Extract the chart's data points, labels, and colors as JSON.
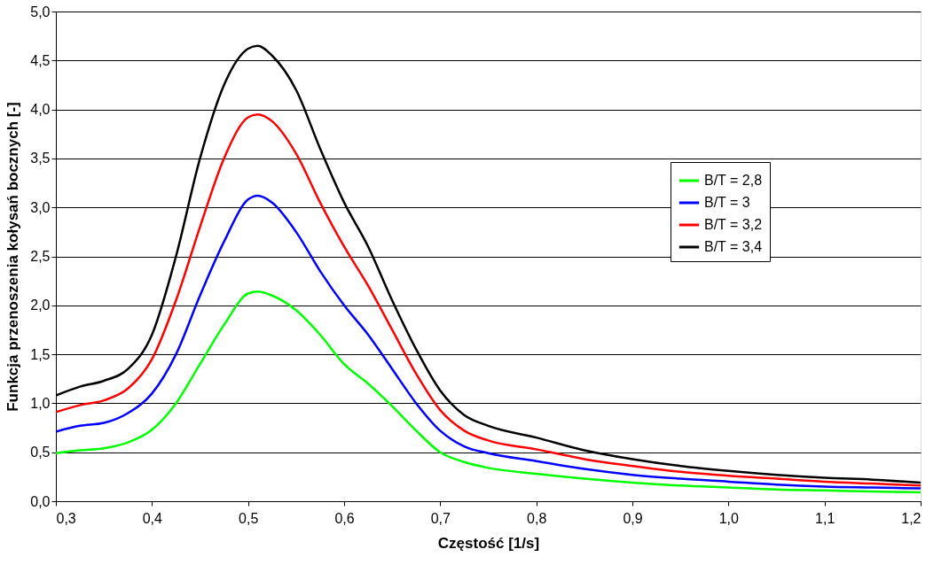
{
  "chart_data": {
    "type": "line",
    "xlabel": "Częstość [1/s]",
    "ylabel": "Funkcja przenoszenia kołysań bocznych [-]",
    "x": [
      0.3,
      0.325,
      0.35,
      0.375,
      0.4,
      0.425,
      0.45,
      0.475,
      0.5,
      0.51,
      0.525,
      0.55,
      0.575,
      0.6,
      0.625,
      0.65,
      0.675,
      0.7,
      0.725,
      0.75,
      0.8,
      0.85,
      0.9,
      0.95,
      1.0,
      1.05,
      1.1,
      1.15,
      1.2
    ],
    "series": [
      {
        "name": "B/T = 2,8",
        "color": "#00ff00",
        "values": [
          0.49,
          0.52,
          0.54,
          0.6,
          0.73,
          1.0,
          1.4,
          1.8,
          2.12,
          2.14,
          2.1,
          1.95,
          1.7,
          1.4,
          1.2,
          0.97,
          0.72,
          0.5,
          0.4,
          0.34,
          0.28,
          0.23,
          0.19,
          0.16,
          0.14,
          0.12,
          0.11,
          0.1,
          0.09
        ]
      },
      {
        "name": "B/T = 3",
        "color": "#0000ff",
        "values": [
          0.71,
          0.77,
          0.8,
          0.9,
          1.1,
          1.5,
          2.1,
          2.65,
          3.08,
          3.12,
          3.05,
          2.75,
          2.35,
          2.0,
          1.7,
          1.35,
          1.0,
          0.72,
          0.56,
          0.49,
          0.41,
          0.33,
          0.27,
          0.23,
          0.2,
          0.17,
          0.15,
          0.14,
          0.13
        ]
      },
      {
        "name": "B/T = 3,2",
        "color": "#ff0000",
        "values": [
          0.91,
          0.98,
          1.03,
          1.15,
          1.45,
          2.05,
          2.8,
          3.5,
          3.92,
          3.95,
          3.88,
          3.55,
          3.05,
          2.6,
          2.2,
          1.75,
          1.3,
          0.93,
          0.72,
          0.62,
          0.53,
          0.43,
          0.36,
          0.3,
          0.26,
          0.23,
          0.2,
          0.18,
          0.16
        ]
      },
      {
        "name": "B/T = 3,4",
        "color": "#000000",
        "values": [
          1.08,
          1.17,
          1.23,
          1.35,
          1.7,
          2.5,
          3.5,
          4.25,
          4.62,
          4.65,
          4.55,
          4.2,
          3.6,
          3.05,
          2.6,
          2.05,
          1.55,
          1.13,
          0.88,
          0.77,
          0.65,
          0.52,
          0.43,
          0.36,
          0.31,
          0.27,
          0.24,
          0.22,
          0.19
        ]
      }
    ],
    "xlim": [
      0.3,
      1.2
    ],
    "xticks": [
      {
        "value": 0.3,
        "label": "0,3"
      },
      {
        "value": 0.4,
        "label": "0,4"
      },
      {
        "value": 0.5,
        "label": "0,5"
      },
      {
        "value": 0.6,
        "label": "0,6"
      },
      {
        "value": 0.7,
        "label": "0,7"
      },
      {
        "value": 0.8,
        "label": "0,8"
      },
      {
        "value": 0.9,
        "label": "0,9"
      },
      {
        "value": 1.0,
        "label": "1,0"
      },
      {
        "value": 1.1,
        "label": "1,1"
      },
      {
        "value": 1.2,
        "label": "1,2"
      }
    ],
    "ylim": [
      0,
      5
    ],
    "yticks": [
      {
        "value": 0,
        "label": "0,0"
      },
      {
        "value": 0.5,
        "label": "0,5"
      },
      {
        "value": 1.0,
        "label": "1,0"
      },
      {
        "value": 1.5,
        "label": "1,5"
      },
      {
        "value": 2.0,
        "label": "2,0"
      },
      {
        "value": 2.5,
        "label": "2,5"
      },
      {
        "value": 3.0,
        "label": "3,0"
      },
      {
        "value": 3.5,
        "label": "3,5"
      },
      {
        "value": 4.0,
        "label": "4,0"
      },
      {
        "value": 4.5,
        "label": "4,5"
      },
      {
        "value": 5.0,
        "label": "5,0"
      }
    ],
    "grid": "y",
    "legend": "top right",
    "line_style": "solid",
    "marker": "none"
  }
}
